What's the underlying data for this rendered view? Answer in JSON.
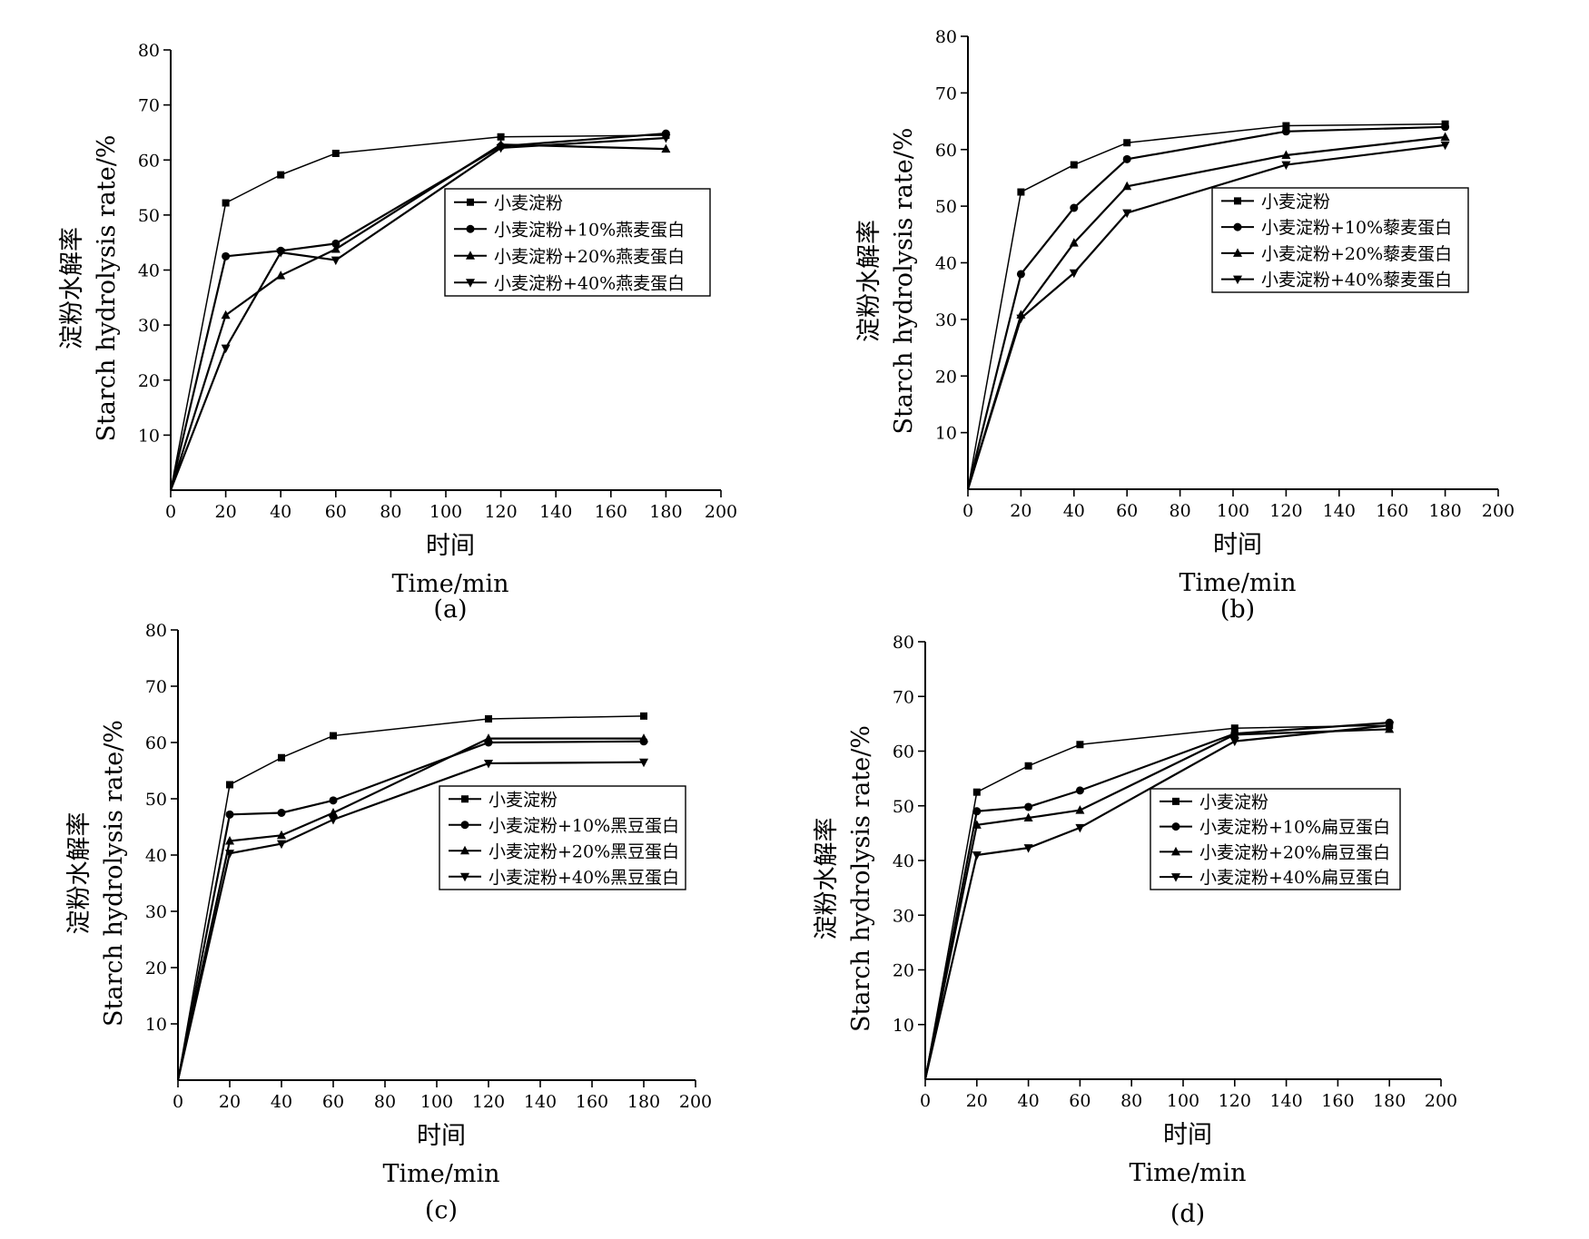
{
  "chart_data": [
    {
      "type": "line",
      "panel_label": "(a)",
      "xlabel_cn": "时间",
      "xlabel_en": "Time/min",
      "ylabel_cn": "淀粉水解率",
      "ylabel_en": "Starch hydrolysis rate/%",
      "xlim": [
        0,
        200
      ],
      "ylim": [
        0,
        80
      ],
      "xticks": [
        0,
        20,
        40,
        60,
        80,
        100,
        120,
        140,
        160,
        180,
        200
      ],
      "yticks": [
        10,
        20,
        30,
        40,
        50,
        60,
        70,
        80
      ],
      "grid": false,
      "legend_position": "center-right",
      "x": [
        0,
        20,
        40,
        60,
        120,
        180
      ],
      "series": [
        {
          "name": "小麦淀粉",
          "marker": "square",
          "values": [
            0,
            52.2,
            57.3,
            61.2,
            64.2,
            64.5
          ]
        },
        {
          "name": "小麦淀粉+10%燕麦蛋白",
          "marker": "circle",
          "values": [
            0,
            42.5,
            43.5,
            44.8,
            62.5,
            64.8
          ]
        },
        {
          "name": "小麦淀粉+20%燕麦蛋白",
          "marker": "triangle-up",
          "values": [
            0,
            31.8,
            39.0,
            43.8,
            62.8,
            62.0
          ]
        },
        {
          "name": "小麦淀粉+40%燕麦蛋白",
          "marker": "triangle-down",
          "values": [
            0,
            25.8,
            43.2,
            41.8,
            62.2,
            64.0
          ]
        }
      ]
    },
    {
      "type": "line",
      "panel_label": "(b)",
      "xlabel_cn": "时间",
      "xlabel_en": "Time/min",
      "ylabel_cn": "淀粉水解率",
      "ylabel_en": "Starch hydrolysis rate/%",
      "xlim": [
        0,
        200
      ],
      "ylim": [
        0,
        80
      ],
      "xticks": [
        0,
        20,
        40,
        60,
        80,
        100,
        120,
        140,
        160,
        180,
        200
      ],
      "yticks": [
        10,
        20,
        30,
        40,
        50,
        60,
        70,
        80
      ],
      "grid": false,
      "legend_position": "center-right",
      "x": [
        0,
        20,
        40,
        60,
        120,
        180
      ],
      "series": [
        {
          "name": "小麦淀粉",
          "marker": "square",
          "values": [
            0,
            52.5,
            57.3,
            61.2,
            64.2,
            64.5
          ]
        },
        {
          "name": "小麦淀粉+10%藜麦蛋白",
          "marker": "circle",
          "values": [
            0,
            38.0,
            49.7,
            58.3,
            63.2,
            64.0
          ]
        },
        {
          "name": "小麦淀粉+20%藜麦蛋白",
          "marker": "triangle-up",
          "values": [
            0,
            30.8,
            43.5,
            53.5,
            59.0,
            62.2
          ]
        },
        {
          "name": "小麦淀粉+40%藜麦蛋白",
          "marker": "triangle-down",
          "values": [
            0,
            30.2,
            38.2,
            48.8,
            57.3,
            60.8
          ]
        }
      ]
    },
    {
      "type": "line",
      "panel_label": "(c)",
      "xlabel_cn": "时间",
      "xlabel_en": "Time/min",
      "ylabel_cn": "淀粉水解率",
      "ylabel_en": "Starch hydrolysis rate/%",
      "xlim": [
        0,
        200
      ],
      "ylim": [
        0,
        80
      ],
      "xticks": [
        0,
        20,
        40,
        60,
        80,
        100,
        120,
        140,
        160,
        180,
        200
      ],
      "yticks": [
        10,
        20,
        30,
        40,
        50,
        60,
        70,
        80
      ],
      "grid": false,
      "legend_position": "center-right",
      "x": [
        0,
        20,
        40,
        60,
        120,
        180
      ],
      "series": [
        {
          "name": "小麦淀粉",
          "marker": "square",
          "values": [
            0,
            52.5,
            57.3,
            61.2,
            64.2,
            64.7
          ]
        },
        {
          "name": "小麦淀粉+10%黑豆蛋白",
          "marker": "circle",
          "values": [
            0,
            47.2,
            47.5,
            49.7,
            60.0,
            60.2
          ]
        },
        {
          "name": "小麦淀粉+20%黑豆蛋白",
          "marker": "triangle-up",
          "values": [
            0,
            42.5,
            43.5,
            47.5,
            60.7,
            60.7
          ]
        },
        {
          "name": "小麦淀粉+40%黑豆蛋白",
          "marker": "triangle-down",
          "values": [
            0,
            40.3,
            42.0,
            46.3,
            56.3,
            56.5
          ]
        }
      ]
    },
    {
      "type": "line",
      "panel_label": "(d)",
      "xlabel_cn": "时间",
      "xlabel_en": "Time/min",
      "ylabel_cn": "淀粉水解率",
      "ylabel_en": "Starch hydrolysis rate/%",
      "xlim": [
        0,
        200
      ],
      "ylim": [
        0,
        80
      ],
      "xticks": [
        0,
        20,
        40,
        60,
        80,
        100,
        120,
        140,
        160,
        180,
        200
      ],
      "yticks": [
        10,
        20,
        30,
        40,
        50,
        60,
        70,
        80
      ],
      "grid": false,
      "legend_position": "center-right",
      "x": [
        0,
        20,
        40,
        60,
        120,
        180
      ],
      "series": [
        {
          "name": "小麦淀粉",
          "marker": "square",
          "values": [
            0,
            52.5,
            57.3,
            61.2,
            64.2,
            64.7
          ]
        },
        {
          "name": "小麦淀粉+10%扁豆蛋白",
          "marker": "circle",
          "values": [
            0,
            49.0,
            49.8,
            52.8,
            63.2,
            65.2
          ]
        },
        {
          "name": "小麦淀粉+20%扁豆蛋白",
          "marker": "triangle-up",
          "values": [
            0,
            46.5,
            47.8,
            49.2,
            63.0,
            64.0
          ]
        },
        {
          "name": "小麦淀粉+40%扁豆蛋白",
          "marker": "triangle-down",
          "values": [
            0,
            41.0,
            42.3,
            46.0,
            61.8,
            64.7
          ]
        }
      ]
    }
  ]
}
